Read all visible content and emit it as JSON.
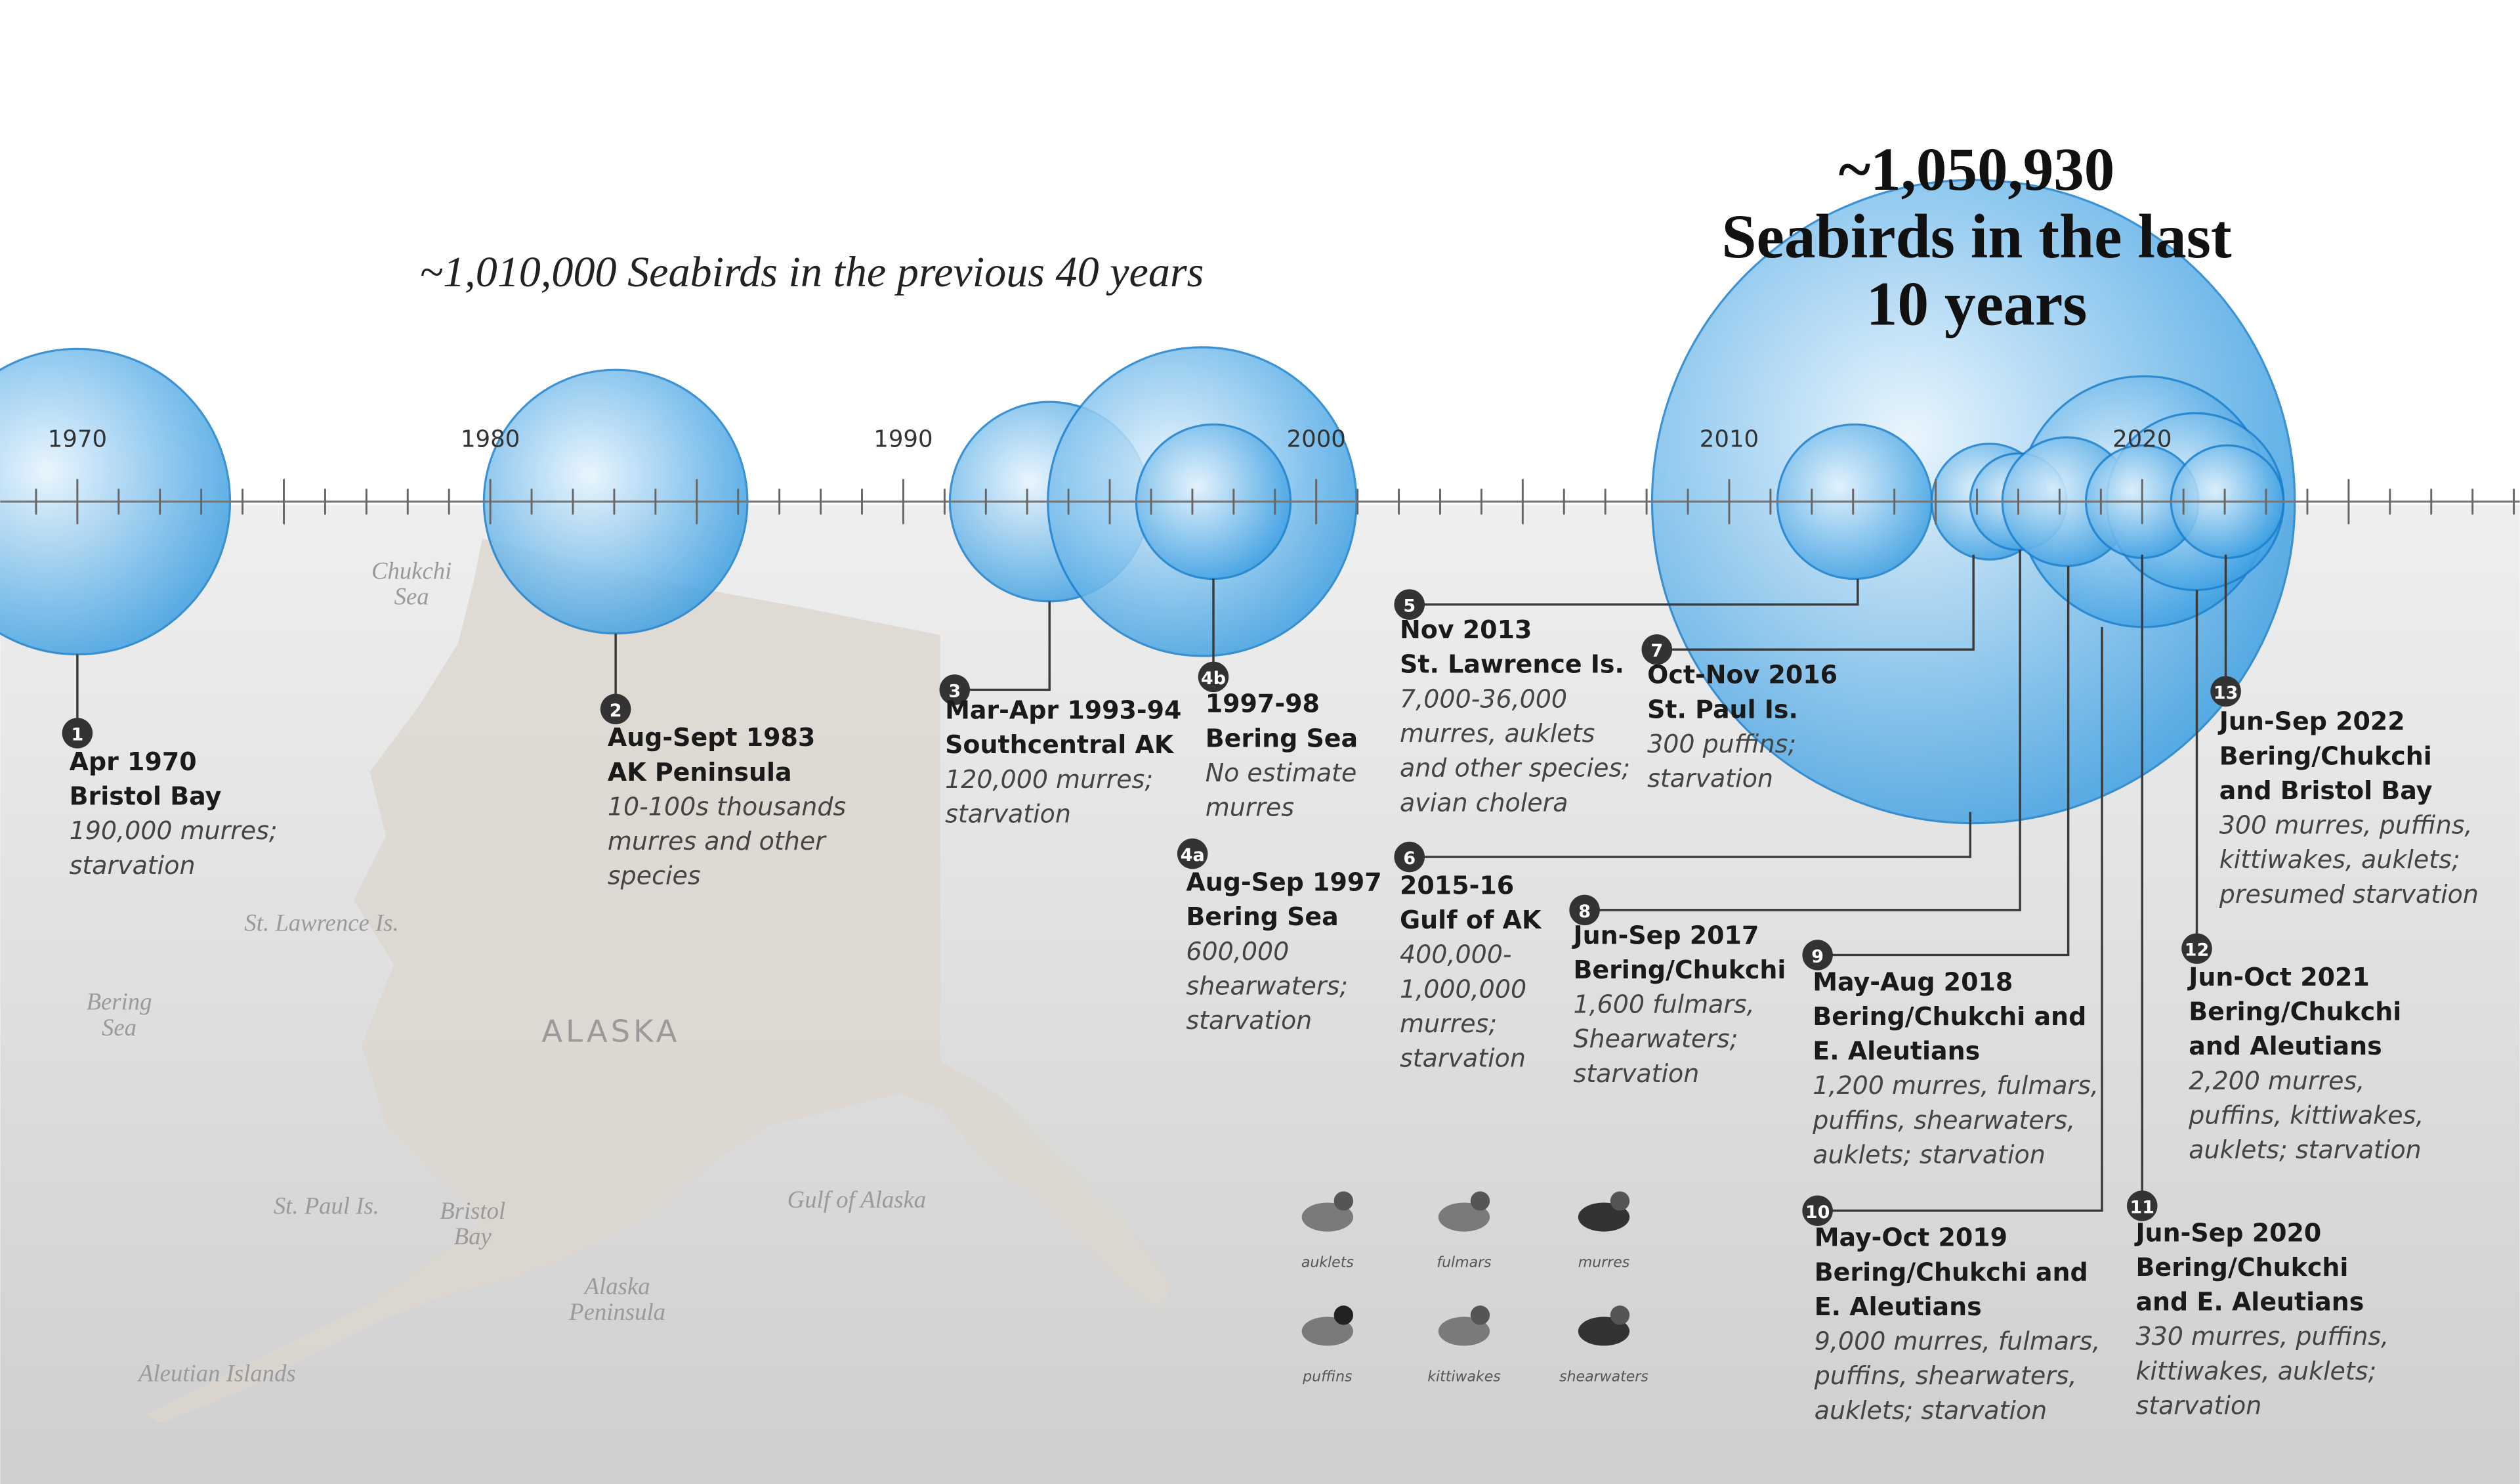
{
  "header": {
    "previous": "~1,010,000 Seabirds in the previous 40 years",
    "recent": [
      "~1,050,930",
      "Seabirds in the last",
      "10 years"
    ]
  },
  "years": [
    "1970",
    "1980",
    "1990",
    "2000",
    "2010",
    "2020"
  ],
  "events": [
    {
      "num": "1",
      "date": "Apr 1970",
      "place": [
        "Bristol Bay"
      ],
      "detail": [
        "190,000 murres;",
        "starvation"
      ]
    },
    {
      "num": "2",
      "date": "Aug-Sept 1983",
      "place": [
        "AK Peninsula"
      ],
      "detail": [
        "10-100s thousands",
        "murres and other",
        "species"
      ]
    },
    {
      "num": "3",
      "date": "Mar-Apr 1993-94",
      "place": [
        "Southcentral AK"
      ],
      "detail": [
        "120,000 murres;",
        "starvation"
      ]
    },
    {
      "num": "4b",
      "date": "1997-98",
      "place": [
        "Bering Sea"
      ],
      "detail": [
        "No estimate",
        "murres"
      ]
    },
    {
      "num": "4a",
      "date": "Aug-Sep 1997",
      "place": [
        "Bering Sea"
      ],
      "detail": [
        "600,000",
        "shearwaters;",
        "starvation"
      ]
    },
    {
      "num": "5",
      "date": "Nov 2013",
      "place": [
        "St. Lawrence Is."
      ],
      "detail": [
        "7,000-36,000",
        "murres, auklets",
        "and other species;",
        "avian cholera"
      ]
    },
    {
      "num": "7",
      "date": "Oct-Nov 2016",
      "place": [
        "St. Paul Is."
      ],
      "detail": [
        "300 puffins;",
        "starvation"
      ]
    },
    {
      "num": "6",
      "date": "2015-16",
      "place": [
        "Gulf of AK"
      ],
      "detail": [
        "400,000-",
        "1,000,000",
        "murres;",
        "starvation"
      ]
    },
    {
      "num": "8",
      "date": "Jun-Sep 2017",
      "place": [
        "Bering/Chukchi"
      ],
      "detail": [
        "1,600 fulmars,",
        "Shearwaters;",
        "starvation"
      ]
    },
    {
      "num": "9",
      "date": "May-Aug 2018",
      "place": [
        "Bering/Chukchi and",
        "E. Aleutians"
      ],
      "detail": [
        "1,200 murres, fulmars,",
        "puffins, shearwaters,",
        "auklets; starvation"
      ]
    },
    {
      "num": "10",
      "date": "May-Oct 2019",
      "place": [
        "Bering/Chukchi and",
        "E. Aleutians"
      ],
      "detail": [
        "9,000 murres, fulmars,",
        "puffins, shearwaters,",
        "auklets; starvation"
      ]
    },
    {
      "num": "11",
      "date": "Jun-Sep 2020",
      "place": [
        "Bering/Chukchi",
        "and E. Aleutians"
      ],
      "detail": [
        "330 murres, puffins,",
        "kittiwakes, auklets;",
        "starvation"
      ]
    },
    {
      "num": "12",
      "date": "Jun-Oct 2021",
      "place": [
        "Bering/Chukchi",
        "and Aleutians"
      ],
      "detail": [
        "2,200 murres,",
        "puffins, kittiwakes,",
        "auklets; starvation"
      ]
    },
    {
      "num": "13",
      "date": "Jun-Sep 2022",
      "place": [
        "Bering/Chukchi",
        "and Bristol Bay"
      ],
      "detail": [
        "300 murres, puffins,",
        "kittiwakes, auklets;",
        "presumed starvation"
      ]
    }
  ],
  "map_labels": [
    [
      "Chukchi",
      "Sea"
    ],
    [
      "St. Lawrence Is."
    ],
    [
      "Bering",
      "Sea"
    ],
    [
      "ALASKA"
    ],
    [
      "St. Paul Is."
    ],
    [
      "Bristol",
      "Bay"
    ],
    [
      "Alaska",
      "Peninsula"
    ],
    [
      "Gulf of Alaska"
    ],
    [
      "Aleutian Islands"
    ]
  ],
  "birds": [
    "auklets",
    "fulmars",
    "murres",
    "puffins",
    "kittiwakes",
    "shearwaters"
  ]
}
